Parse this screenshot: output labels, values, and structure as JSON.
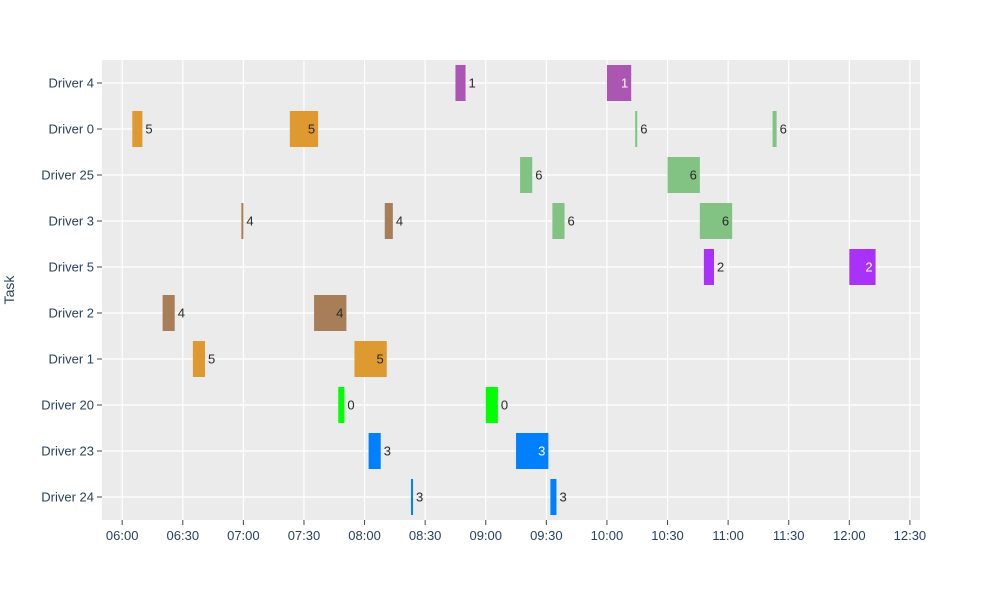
{
  "chart_data": {
    "type": "timeline",
    "title": "",
    "xlabel": "",
    "ylabel": "Task",
    "xlim": [
      "05:50",
      "12:35"
    ],
    "x_ticks": [
      "06:00",
      "06:30",
      "07:00",
      "07:30",
      "08:00",
      "08:30",
      "09:00",
      "09:30",
      "10:00",
      "10:30",
      "11:00",
      "11:30",
      "12:00",
      "12:30"
    ],
    "categories": [
      "Driver 4",
      "Driver 0",
      "Driver 25",
      "Driver 3",
      "Driver 5",
      "Driver 2",
      "Driver 1",
      "Driver 20",
      "Driver 23",
      "Driver 24"
    ],
    "grid": true,
    "colors": {
      "0": "#00ff00",
      "1": "#ab56b2",
      "2": "#a832f7",
      "3": "#0080ff",
      "4": "#a87e58",
      "5": "#de9a30",
      "6": "#82c283"
    },
    "tasks": [
      {
        "task": "Driver 4",
        "start": "08:45",
        "end": "08:50",
        "label": "1"
      },
      {
        "task": "Driver 4",
        "start": "10:00",
        "end": "10:12",
        "label": "1"
      },
      {
        "task": "Driver 0",
        "start": "06:05",
        "end": "06:10",
        "label": "5"
      },
      {
        "task": "Driver 0",
        "start": "07:23",
        "end": "07:37",
        "label": "5"
      },
      {
        "task": "Driver 0",
        "start": "10:14",
        "end": "10:15",
        "label": "6"
      },
      {
        "task": "Driver 0",
        "start": "11:22",
        "end": "11:24",
        "label": "6"
      },
      {
        "task": "Driver 25",
        "start": "09:17",
        "end": "09:23",
        "label": "6"
      },
      {
        "task": "Driver 25",
        "start": "10:30",
        "end": "10:46",
        "label": "6"
      },
      {
        "task": "Driver 3",
        "start": "06:59",
        "end": "07:00",
        "label": "4"
      },
      {
        "task": "Driver 3",
        "start": "08:10",
        "end": "08:14",
        "label": "4"
      },
      {
        "task": "Driver 3",
        "start": "09:33",
        "end": "09:39",
        "label": "6"
      },
      {
        "task": "Driver 3",
        "start": "10:46",
        "end": "11:02",
        "label": "6"
      },
      {
        "task": "Driver 5",
        "start": "10:48",
        "end": "10:53",
        "label": "2"
      },
      {
        "task": "Driver 5",
        "start": "12:00",
        "end": "12:13",
        "label": "2"
      },
      {
        "task": "Driver 2",
        "start": "06:20",
        "end": "06:26",
        "label": "4"
      },
      {
        "task": "Driver 2",
        "start": "07:35",
        "end": "07:51",
        "label": "4"
      },
      {
        "task": "Driver 1",
        "start": "06:35",
        "end": "06:41",
        "label": "5"
      },
      {
        "task": "Driver 1",
        "start": "07:55",
        "end": "08:11",
        "label": "5"
      },
      {
        "task": "Driver 20",
        "start": "07:47",
        "end": "07:50",
        "label": "0"
      },
      {
        "task": "Driver 20",
        "start": "09:00",
        "end": "09:06",
        "label": "0"
      },
      {
        "task": "Driver 23",
        "start": "08:02",
        "end": "08:08",
        "label": "3"
      },
      {
        "task": "Driver 23",
        "start": "09:15",
        "end": "09:31",
        "label": "3"
      },
      {
        "task": "Driver 24",
        "start": "08:23",
        "end": "08:24",
        "label": "3"
      },
      {
        "task": "Driver 24",
        "start": "09:32",
        "end": "09:35",
        "label": "3"
      }
    ]
  }
}
